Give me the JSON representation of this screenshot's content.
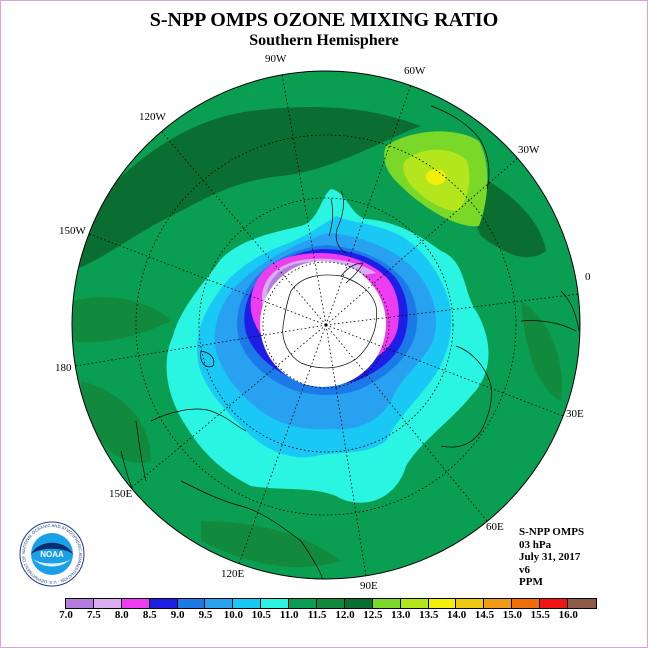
{
  "title": "S-NPP OMPS OZONE MIXING RATIO",
  "subtitle": "Southern Hemisphere",
  "longitude_labels": [
    "90W",
    "60W",
    "30W",
    "0",
    "30E",
    "60E",
    "90E",
    "120E",
    "150E",
    "180",
    "150W",
    "120W"
  ],
  "info": {
    "product": "S-NPP OMPS",
    "level": "03 hPa",
    "date": "July 31, 2017",
    "version": "v6",
    "units": "PPM"
  },
  "logo": {
    "name": "NOAA",
    "ring_text": "NATIONAL OCEANIC AND ATMOSPHERIC ADMINISTRATION · U.S. DEPARTMENT OF COMMERCE"
  },
  "colorbar": {
    "ticks": [
      "7.0",
      "7.5",
      "8.0",
      "8.5",
      "9.0",
      "9.5",
      "10.0",
      "10.5",
      "11.0",
      "11.5",
      "12.0",
      "12.5",
      "13.0",
      "13.5",
      "14.0",
      "14.5",
      "15.0",
      "15.5",
      "16.0"
    ],
    "colors": [
      "#b57ce0",
      "#d8aef0",
      "#ee3cf0",
      "#1e1ee6",
      "#1c7ae8",
      "#28a2f0",
      "#19c8f5",
      "#2af5e2",
      "#0a9e52",
      "#128a3e",
      "#0a6e30",
      "#7ad828",
      "#b4e61e",
      "#f0f00a",
      "#f0c814",
      "#f09c14",
      "#f06e0a",
      "#f01414",
      "#8c5a46"
    ]
  }
}
